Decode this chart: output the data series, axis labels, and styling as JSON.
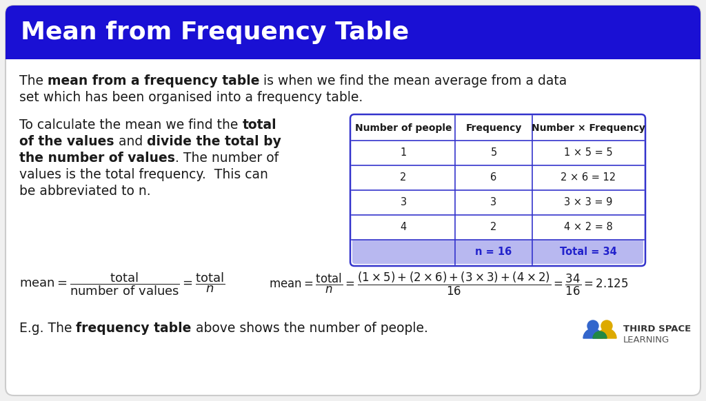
{
  "title": "Mean from Frequency Table",
  "title_bg_color": "#1a10d4",
  "title_text_color": "#ffffff",
  "body_bg_color": "#f5f5f5",
  "border_radius_color": "#cccccc",
  "table_headers": [
    "Number of people",
    "Frequency",
    "Number × Frequency"
  ],
  "table_rows": [
    [
      "1",
      "5",
      "1 × 5 = 5"
    ],
    [
      "2",
      "6",
      "2 × 6 = 12"
    ],
    [
      "3",
      "3",
      "3 × 3 = 9"
    ],
    [
      "4",
      "2",
      "4 × 2 = 8"
    ]
  ],
  "table_footer": [
    "",
    "n = 16",
    "Total = 34"
  ],
  "table_border_color": "#3333cc",
  "table_footer_bg": "#b8b8f0",
  "table_footer_text_color": "#2222cc",
  "logo_text1": "THIRD SPACE",
  "logo_text2": "LEARNING"
}
